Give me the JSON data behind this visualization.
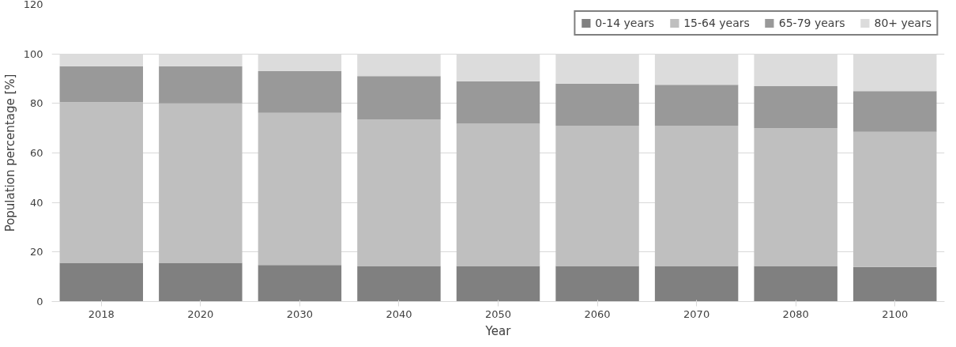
{
  "chart_data": {
    "type": "bar",
    "stacked": true,
    "xlabel": "Year",
    "ylabel": "Population percentage [%]",
    "categories": [
      "2018",
      "2020",
      "2030",
      "2040",
      "2050",
      "2060",
      "2070",
      "2080",
      "2100"
    ],
    "series": [
      {
        "name": "0-14 years",
        "color": "#808080",
        "values": [
          15.6,
          15.6,
          14.8,
          14.4,
          14.4,
          14.4,
          14.4,
          14.4,
          14.0
        ]
      },
      {
        "name": "15-64 years",
        "color": "#bfbfbf",
        "values": [
          64.9,
          64.4,
          61.4,
          59.1,
          57.4,
          56.6,
          56.6,
          55.6,
          54.5
        ]
      },
      {
        "name": "65-79 years",
        "color": "#999999",
        "values": [
          14.5,
          15.0,
          16.8,
          17.5,
          17.2,
          17.0,
          16.5,
          17.0,
          16.5
        ]
      },
      {
        "name": "80+ years",
        "color": "#dcdcdc",
        "values": [
          5.0,
          5.0,
          7.0,
          9.0,
          11.0,
          12.0,
          12.5,
          13.0,
          15.0
        ]
      }
    ],
    "ylim": [
      0,
      120
    ],
    "yticks": [
      0,
      20,
      40,
      60,
      80,
      100,
      120
    ],
    "grid": "y",
    "legend": "top right"
  }
}
